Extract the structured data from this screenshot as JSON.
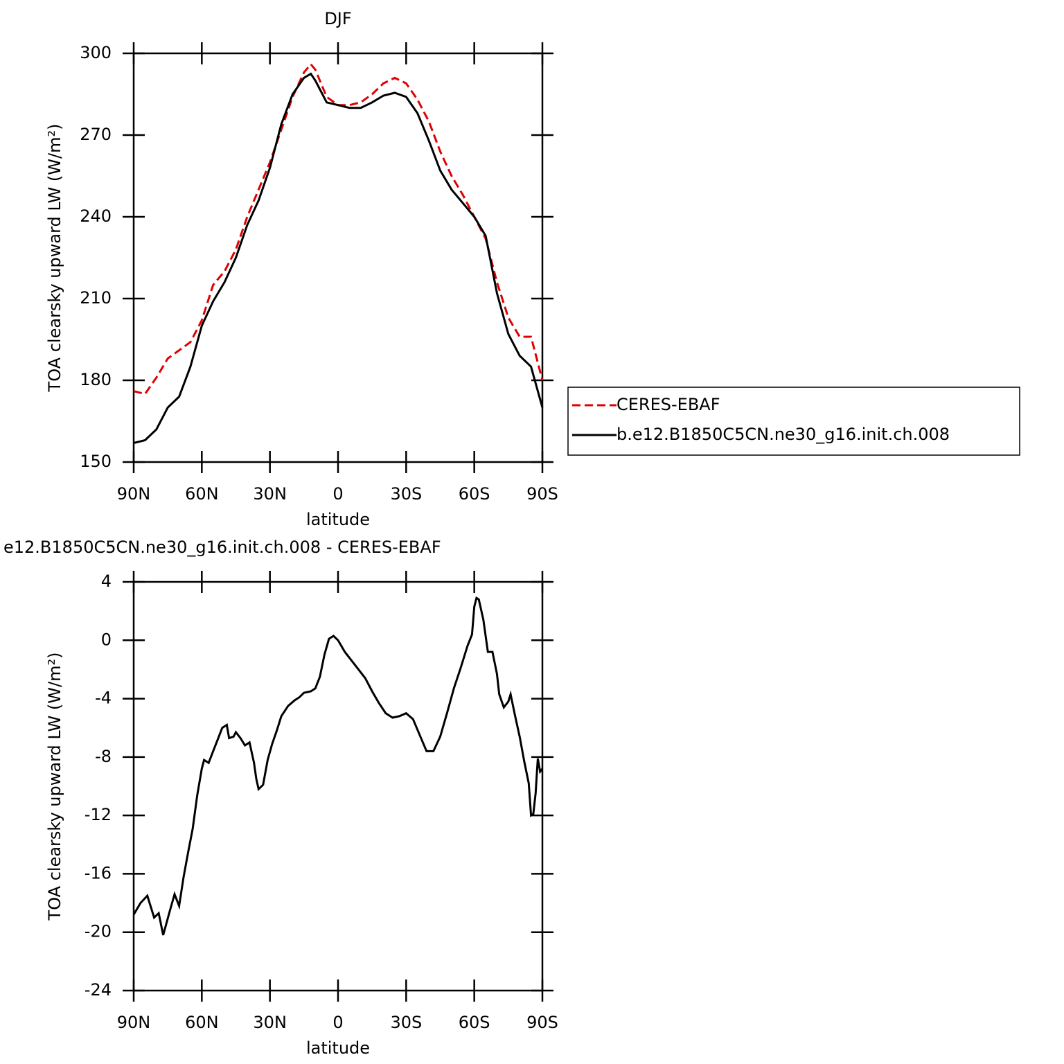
{
  "chart_data": [
    {
      "type": "line",
      "title": "DJF",
      "xlabel": "latitude",
      "ylabel": "TOA clearsky upward LW (W/m²)",
      "x": [
        90,
        85,
        80,
        75,
        70,
        65,
        60,
        55,
        50,
        45,
        40,
        35,
        30,
        25,
        20,
        15,
        12,
        10,
        5,
        0,
        -5,
        -10,
        -15,
        -20,
        -25,
        -30,
        -35,
        -40,
        -45,
        -50,
        -55,
        -60,
        -65,
        -70,
        -75,
        -80,
        -85,
        -90
      ],
      "series": [
        {
          "name": "CERES-EBAF",
          "color": "#e00000",
          "dash": true,
          "values": [
            176,
            175,
            181,
            188,
            191,
            194,
            202,
            215,
            220,
            228,
            240,
            250,
            260,
            272,
            284,
            293,
            296,
            294,
            284,
            281,
            281,
            282,
            285,
            289,
            291,
            289,
            283,
            275,
            264,
            255,
            248,
            240,
            232,
            216,
            203,
            196,
            196,
            180
          ]
        },
        {
          "name": "b.e12.B1850C5CN.ne30_g16.init.ch.008",
          "color": "#000000",
          "dash": false,
          "values": [
            157,
            158,
            162,
            170,
            174,
            185,
            200,
            209,
            216,
            225,
            237,
            246,
            258,
            274,
            285,
            291,
            292.5,
            290,
            282,
            281,
            280,
            280,
            282,
            284.5,
            285.5,
            284,
            278,
            268,
            257,
            250,
            245,
            240,
            233,
            212,
            197,
            189,
            185,
            170
          ]
        }
      ],
      "xlim": [
        90,
        -90
      ],
      "xticks": [
        {
          "value": 90,
          "label": "90N"
        },
        {
          "value": 60,
          "label": "60N"
        },
        {
          "value": 30,
          "label": "30N"
        },
        0,
        {
          "value": -30,
          "label": "30S"
        },
        {
          "value": -60,
          "label": "60S"
        },
        {
          "value": -90,
          "label": "90S"
        }
      ],
      "ylim": [
        150,
        300
      ],
      "yticks": [
        150,
        180,
        210,
        240,
        270,
        300
      ],
      "legend": "right"
    },
    {
      "type": "line",
      "title": "e12.B1850C5CN.ne30_g16.init.ch.008 - CERES-EBAF",
      "xlabel": "latitude",
      "ylabel": "TOA clearsky upward LW (W/m²)",
      "x": [
        90,
        87,
        84,
        81,
        79,
        77,
        74,
        72,
        70,
        68,
        66,
        64,
        62,
        60,
        59,
        57,
        55,
        53,
        51,
        49,
        48,
        46,
        45,
        43,
        41,
        39,
        37,
        36,
        35,
        33,
        31,
        29,
        27,
        25,
        22,
        19,
        17,
        15,
        12,
        10,
        8,
        6,
        4,
        2,
        0,
        -3,
        -6,
        -9,
        -12,
        -15,
        -18,
        -21,
        -24,
        -27,
        -30,
        -33,
        -36,
        -39,
        -42,
        -45,
        -48,
        -51,
        -54,
        -57,
        -59,
        -60,
        -61,
        -62,
        -64,
        -66,
        -68,
        -70,
        -71,
        -73,
        -75,
        -76,
        -78,
        -80,
        -82,
        -84,
        -85,
        -86,
        -87,
        -88,
        -89,
        -90
      ],
      "series": [
        {
          "color": "#000000",
          "dash": false,
          "values": [
            -18.8,
            -18.0,
            -17.5,
            -19.0,
            -18.7,
            -20.2,
            -18.5,
            -17.4,
            -18.2,
            -16.2,
            -14.5,
            -12.9,
            -10.6,
            -8.8,
            -8.2,
            -8.4,
            -7.6,
            -6.8,
            -6.0,
            -5.8,
            -6.7,
            -6.6,
            -6.3,
            -6.7,
            -7.2,
            -7.0,
            -8.4,
            -9.5,
            -10.2,
            -9.9,
            -8.2,
            -7.1,
            -6.2,
            -5.2,
            -4.5,
            -4.1,
            -3.9,
            -3.6,
            -3.5,
            -3.3,
            -2.5,
            -1.0,
            0.1,
            0.3,
            0.0,
            -0.8,
            -1.4,
            -2.0,
            -2.6,
            -3.5,
            -4.3,
            -5.0,
            -5.3,
            -5.2,
            -5.0,
            -5.4,
            -6.5,
            -7.6,
            -7.6,
            -6.6,
            -5.0,
            -3.3,
            -1.9,
            -0.4,
            0.4,
            2.3,
            2.9,
            2.8,
            1.4,
            -0.8,
            -0.8,
            -2.3,
            -3.7,
            -4.6,
            -4.2,
            -3.7,
            -5.2,
            -6.6,
            -8.3,
            -9.8,
            -12.0,
            -11.9,
            -10.5,
            -8.1,
            -9.0,
            -8.8
          ]
        }
      ],
      "xlim": [
        90,
        -90
      ],
      "xticks": [
        {
          "value": 90,
          "label": "90N"
        },
        {
          "value": 60,
          "label": "60N"
        },
        {
          "value": 30,
          "label": "30N"
        },
        0,
        {
          "value": -30,
          "label": "30S"
        },
        {
          "value": -60,
          "label": "60S"
        },
        {
          "value": -90,
          "label": "90S"
        }
      ],
      "ylim": [
        -24,
        4
      ],
      "yticks": [
        -24,
        -20,
        -16,
        -12,
        -8,
        -4,
        0,
        4
      ]
    }
  ]
}
